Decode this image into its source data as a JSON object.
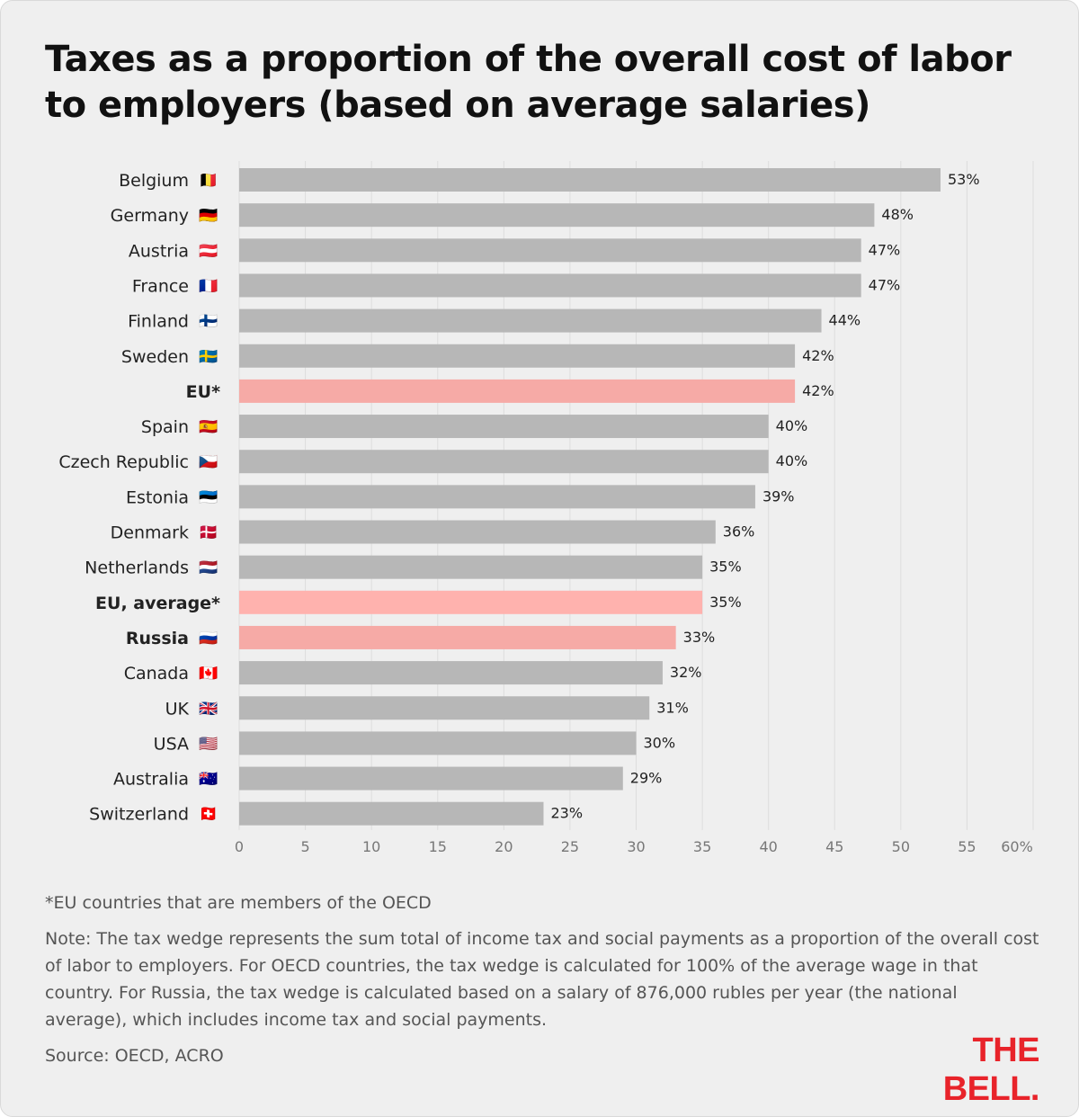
{
  "title": "Taxes as a proportion of the overall cost of labor to employers (based on average salaries)",
  "colors": {
    "bar": "#b7b7b7",
    "highlight": "#f6aaa6",
    "highlight_alt": "#ffb2ae",
    "grid": "#dddddd",
    "brand": "#e8232a"
  },
  "chart_data": {
    "type": "bar",
    "orientation": "horizontal",
    "categories": [
      "Belgium",
      "Germany",
      "Austria",
      "France",
      "Finland",
      "Sweden",
      "EU*",
      "Spain",
      "Czech Republic",
      "Estonia",
      "Denmark",
      "Netherlands",
      "EU, average*",
      "Russia",
      "Canada",
      "UK",
      "USA",
      "Australia",
      "Switzerland"
    ],
    "values": [
      53,
      48,
      47,
      47,
      44,
      42,
      42,
      40,
      40,
      39,
      36,
      35,
      35,
      33,
      32,
      31,
      30,
      29,
      23
    ],
    "value_labels": [
      "53%",
      "48%",
      "47%",
      "47%",
      "44%",
      "42%",
      "42%",
      "40%",
      "40%",
      "39%",
      "36%",
      "35%",
      "35%",
      "33%",
      "32%",
      "31%",
      "30%",
      "29%",
      "23%"
    ],
    "flags": [
      "🇧🇪",
      "🇩🇪",
      "🇦🇹",
      "🇫🇷",
      "🇫🇮",
      "🇸🇪",
      "",
      "🇪🇸",
      "🇨🇿",
      "🇪🇪",
      "🇩🇰",
      "🇳🇱",
      "",
      "🇷🇺",
      "🇨🇦",
      "🇬🇧",
      "🇺🇸",
      "🇦🇺",
      "🇨🇭"
    ],
    "highlighted": [
      "EU*",
      "EU, average*",
      "Russia"
    ],
    "xlim": [
      0,
      60
    ],
    "x_ticks": [
      "0",
      "5",
      "10",
      "15",
      "20",
      "25",
      "30",
      "35",
      "40",
      "45",
      "50",
      "55",
      "60%"
    ],
    "grid": true
  },
  "footnote": "*EU countries that are members of the OECD",
  "note": "Note: The tax wedge represents the sum total of income tax and social payments as a proportion of the overall cost of labor to employers. For OECD countries, the tax wedge is calculated for 100% of the average wage in that country. For Russia, the tax wedge is calculated based on a salary of 876,000 rubles per year (the national average), which includes income tax and social payments.",
  "source": "Source: OECD, ACRO",
  "logo": "THE BELL."
}
